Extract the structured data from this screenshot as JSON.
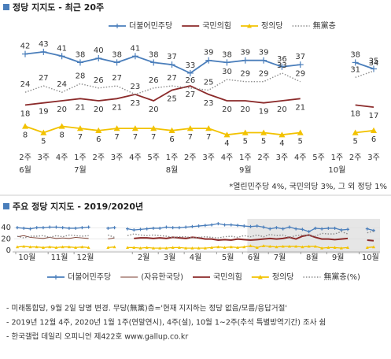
{
  "chart_data": [
    {
      "type": "line",
      "title": "정당 지지도 - 최근 20주",
      "categories": [
        "2주",
        "3주",
        "4주",
        "1주",
        "2주",
        "3주",
        "4주",
        "5주",
        "1주",
        "2주",
        "3주",
        "4주",
        "1주",
        "2주",
        "3주",
        "4주",
        "5주",
        "1주",
        "2주",
        "3주"
      ],
      "month_labels": [
        "6월",
        null,
        null,
        "7월",
        null,
        null,
        null,
        null,
        "8월",
        null,
        null,
        null,
        "9월",
        null,
        null,
        null,
        null,
        "10월",
        null,
        null
      ],
      "ylim": [
        0,
        50
      ],
      "data_labels": true,
      "series": [
        {
          "name": "더불어민주당",
          "color": "#4a7ebb",
          "marker": "plus",
          "line_style": "solid",
          "label_position": "above",
          "values": [
            42,
            43,
            41,
            38,
            40,
            38,
            41,
            38,
            37,
            33,
            39,
            38,
            39,
            39,
            36,
            37,
            null,
            null,
            38,
            35
          ]
        },
        {
          "name": "국민의힘",
          "color": "#8b2a2a",
          "marker": "none",
          "line_style": "solid",
          "label_position": "below",
          "values": [
            18,
            19,
            20,
            21,
            20,
            21,
            23,
            20,
            25,
            27,
            23,
            20,
            20,
            19,
            20,
            21,
            null,
            null,
            18,
            17
          ]
        },
        {
          "name": "정의당",
          "color": "#f2c200",
          "marker": "triangle",
          "line_style": "solid",
          "label_position": "below",
          "values": [
            8,
            5,
            8,
            7,
            6,
            7,
            7,
            7,
            6,
            7,
            7,
            4,
            5,
            5,
            4,
            5,
            null,
            null,
            5,
            6
          ]
        },
        {
          "name": "無黨층",
          "color": "#8c8c8c",
          "marker": "none",
          "line_style": "dotted",
          "label_position": "above",
          "values": [
            24,
            27,
            24,
            28,
            26,
            27,
            23,
            26,
            27,
            26,
            25,
            30,
            29,
            29,
            33,
            29,
            null,
            null,
            31,
            34
          ]
        }
      ],
      "note": "*열린민주당 4%, 국민의당 3%, 그 외 정당 1%"
    },
    {
      "type": "line",
      "title": "주요 정당 지지도 - 2019/2020년",
      "categories": [
        "10월",
        null,
        null,
        null,
        null,
        "11월",
        null,
        null,
        null,
        "12월",
        null,
        null,
        null,
        null,
        null,
        null,
        null,
        null,
        "2월",
        null,
        null,
        null,
        "3월",
        null,
        null,
        null,
        "4월",
        null,
        null,
        null,
        null,
        "5월",
        null,
        null,
        null,
        "6월",
        null,
        null,
        null,
        "7월",
        null,
        null,
        null,
        null,
        "8월",
        null,
        null,
        null,
        "9월",
        null,
        null,
        null,
        null,
        "10월",
        null,
        null
      ],
      "ylim": [
        0,
        50
      ],
      "yticks": [
        0,
        20,
        40
      ],
      "grid": true,
      "data_labels": false,
      "series": [
        {
          "name": "더불어민주당",
          "color": "#4a7ebb",
          "marker": "plus",
          "line_style": "solid",
          "values": [
            40,
            39,
            38,
            40,
            40,
            41,
            41,
            40,
            39,
            39,
            40,
            41,
            null,
            null,
            39,
            40,
            null,
            38,
            36,
            37,
            38,
            39,
            39,
            41,
            40,
            40,
            41,
            42,
            43,
            44,
            45,
            47,
            45,
            45,
            44,
            43,
            42,
            43,
            41,
            38,
            40,
            38,
            41,
            38,
            37,
            33,
            39,
            38,
            39,
            39,
            36,
            37,
            null,
            null,
            38,
            35
          ]
        },
        {
          "name": "(자유한국당)",
          "color": "#7a3b2e",
          "marker": "none",
          "line_style": "thin",
          "values": [
            24,
            26,
            23,
            22,
            21,
            23,
            21,
            22,
            21,
            23,
            22,
            21,
            null,
            null,
            20,
            22,
            null,
            22,
            null,
            null,
            null,
            null,
            null,
            null,
            null,
            null,
            null,
            null,
            null,
            null,
            null,
            null,
            null,
            null,
            null,
            null,
            null,
            null,
            null,
            null,
            null,
            null,
            null,
            null,
            null,
            null,
            null,
            null,
            null,
            null,
            null,
            null,
            null,
            null,
            null,
            null
          ]
        },
        {
          "name": "국민의힘",
          "color": "#8b2a2a",
          "marker": "none",
          "line_style": "solid",
          "values": [
            null,
            null,
            null,
            null,
            null,
            null,
            null,
            null,
            null,
            null,
            null,
            null,
            null,
            null,
            null,
            null,
            null,
            null,
            21,
            22,
            22,
            21,
            22,
            21,
            23,
            22,
            21,
            23,
            22,
            20,
            20,
            18,
            19,
            18,
            20,
            19,
            18,
            19,
            20,
            21,
            20,
            21,
            23,
            20,
            25,
            27,
            23,
            20,
            20,
            19,
            20,
            21,
            null,
            null,
            18,
            17
          ]
        },
        {
          "name": "정의당",
          "color": "#f2c200",
          "marker": "triangle",
          "line_style": "solid",
          "values": [
            6,
            7,
            6,
            6,
            5,
            6,
            5,
            6,
            6,
            5,
            6,
            5,
            null,
            null,
            5,
            6,
            null,
            5,
            5,
            4,
            5,
            4,
            4,
            4,
            5,
            5,
            4,
            4,
            4,
            4,
            5,
            6,
            5,
            6,
            5,
            6,
            8,
            5,
            8,
            7,
            6,
            7,
            7,
            7,
            6,
            7,
            7,
            4,
            5,
            5,
            4,
            5,
            null,
            null,
            5,
            6
          ]
        },
        {
          "name": "無黨층(%)",
          "color": "#8c8c8c",
          "marker": "none",
          "line_style": "dotted",
          "values": [
            25,
            22,
            25,
            25,
            26,
            23,
            26,
            24,
            27,
            26,
            25,
            26,
            null,
            null,
            27,
            23,
            null,
            26,
            29,
            27,
            26,
            27,
            26,
            25,
            23,
            24,
            24,
            22,
            23,
            24,
            23,
            22,
            24,
            25,
            23,
            26,
            24,
            27,
            24,
            28,
            26,
            27,
            23,
            26,
            27,
            26,
            25,
            30,
            29,
            29,
            33,
            29,
            null,
            null,
            31,
            34
          ]
        }
      ]
    }
  ],
  "footnotes": [
    "- 미래통합당, 9월 2일 당명 변경. 무당(無黨)층='현재 지지하는 정당 없음/모름/응답거절'",
    "- 2019년 12월 4주, 2020년 1월 1주(연말연시), 4주(설), 10월 1~2주(추석 특별방역기간) 조사 쉼",
    "- 한국갤럽 데일리 오피니언 제422호 www.gallup.co.kr"
  ]
}
